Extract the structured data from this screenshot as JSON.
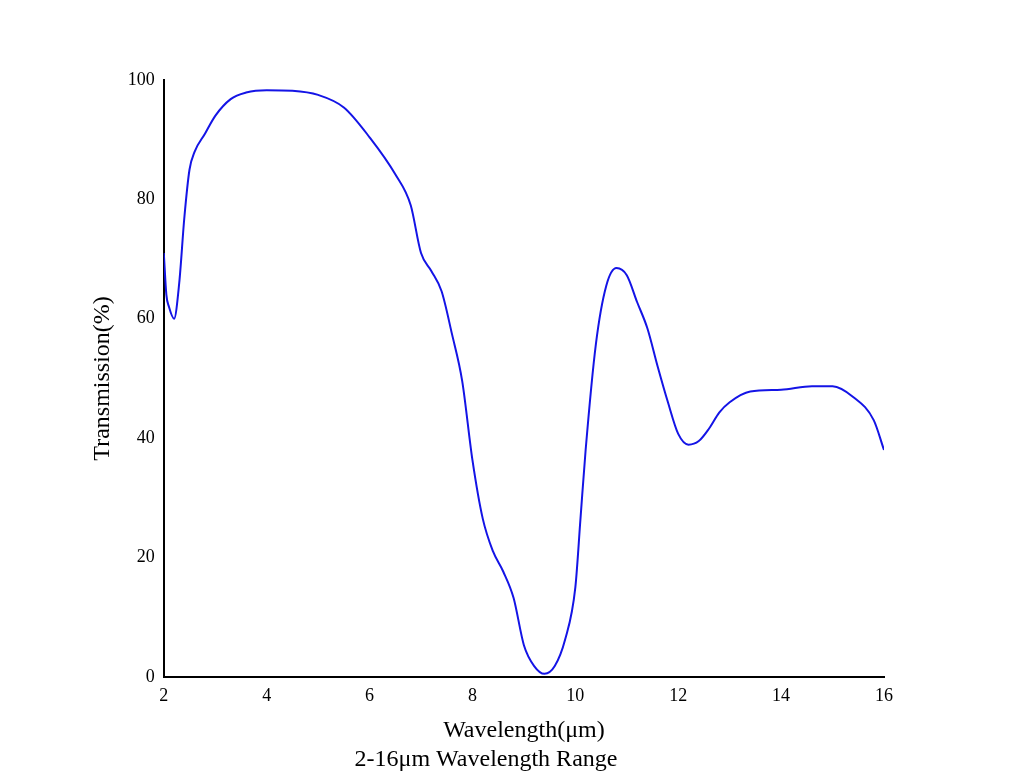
{
  "chart_data": {
    "type": "line",
    "title": "2-16μm Wavelength Range",
    "x_label": "Wavelength(μm)",
    "y_label": "Transmission(%)",
    "x": [
      2.0,
      2.05,
      2.1,
      2.2,
      2.3,
      2.4,
      2.5,
      2.6,
      2.8,
      3.0,
      3.3,
      3.6,
      4.0,
      4.5,
      5.0,
      5.5,
      6.0,
      6.5,
      6.8,
      7.0,
      7.2,
      7.4,
      7.6,
      7.8,
      8.0,
      8.2,
      8.4,
      8.6,
      8.8,
      9.0,
      9.2,
      9.4,
      9.6,
      9.8,
      10.0,
      10.1,
      10.2,
      10.4,
      10.6,
      10.8,
      11.0,
      11.2,
      11.4,
      11.6,
      11.8,
      12.0,
      12.2,
      12.4,
      12.6,
      12.8,
      13.0,
      13.4,
      14.0,
      14.6,
      15.0,
      15.4,
      15.8,
      16.0
    ],
    "values": [
      71,
      64,
      62,
      60,
      66,
      77,
      85,
      88,
      91,
      94,
      96.8,
      97.9,
      98.3,
      98.2,
      97.5,
      95.4,
      90.4,
      84.2,
      79,
      71,
      68,
      64.6,
      57.5,
      49.6,
      36.3,
      26.5,
      21,
      17.6,
      13.2,
      5.3,
      1.8,
      0.5,
      1.8,
      6.2,
      15,
      26.5,
      38,
      55.8,
      65.5,
      68.5,
      67.3,
      62.8,
      58.4,
      52,
      46,
      40.7,
      38.9,
      39.5,
      41.6,
      44.3,
      46,
      47.8,
      48.1,
      48.7,
      48.7,
      46.9,
      43,
      38
    ],
    "color": "#1414e6",
    "xlim": [
      2,
      16
    ],
    "xticks": [
      2,
      4,
      6,
      8,
      10,
      12,
      14,
      16
    ],
    "ylim": [
      0,
      100
    ],
    "yticks": [
      0,
      20,
      40,
      60,
      80,
      100
    ],
    "grid": false
  }
}
